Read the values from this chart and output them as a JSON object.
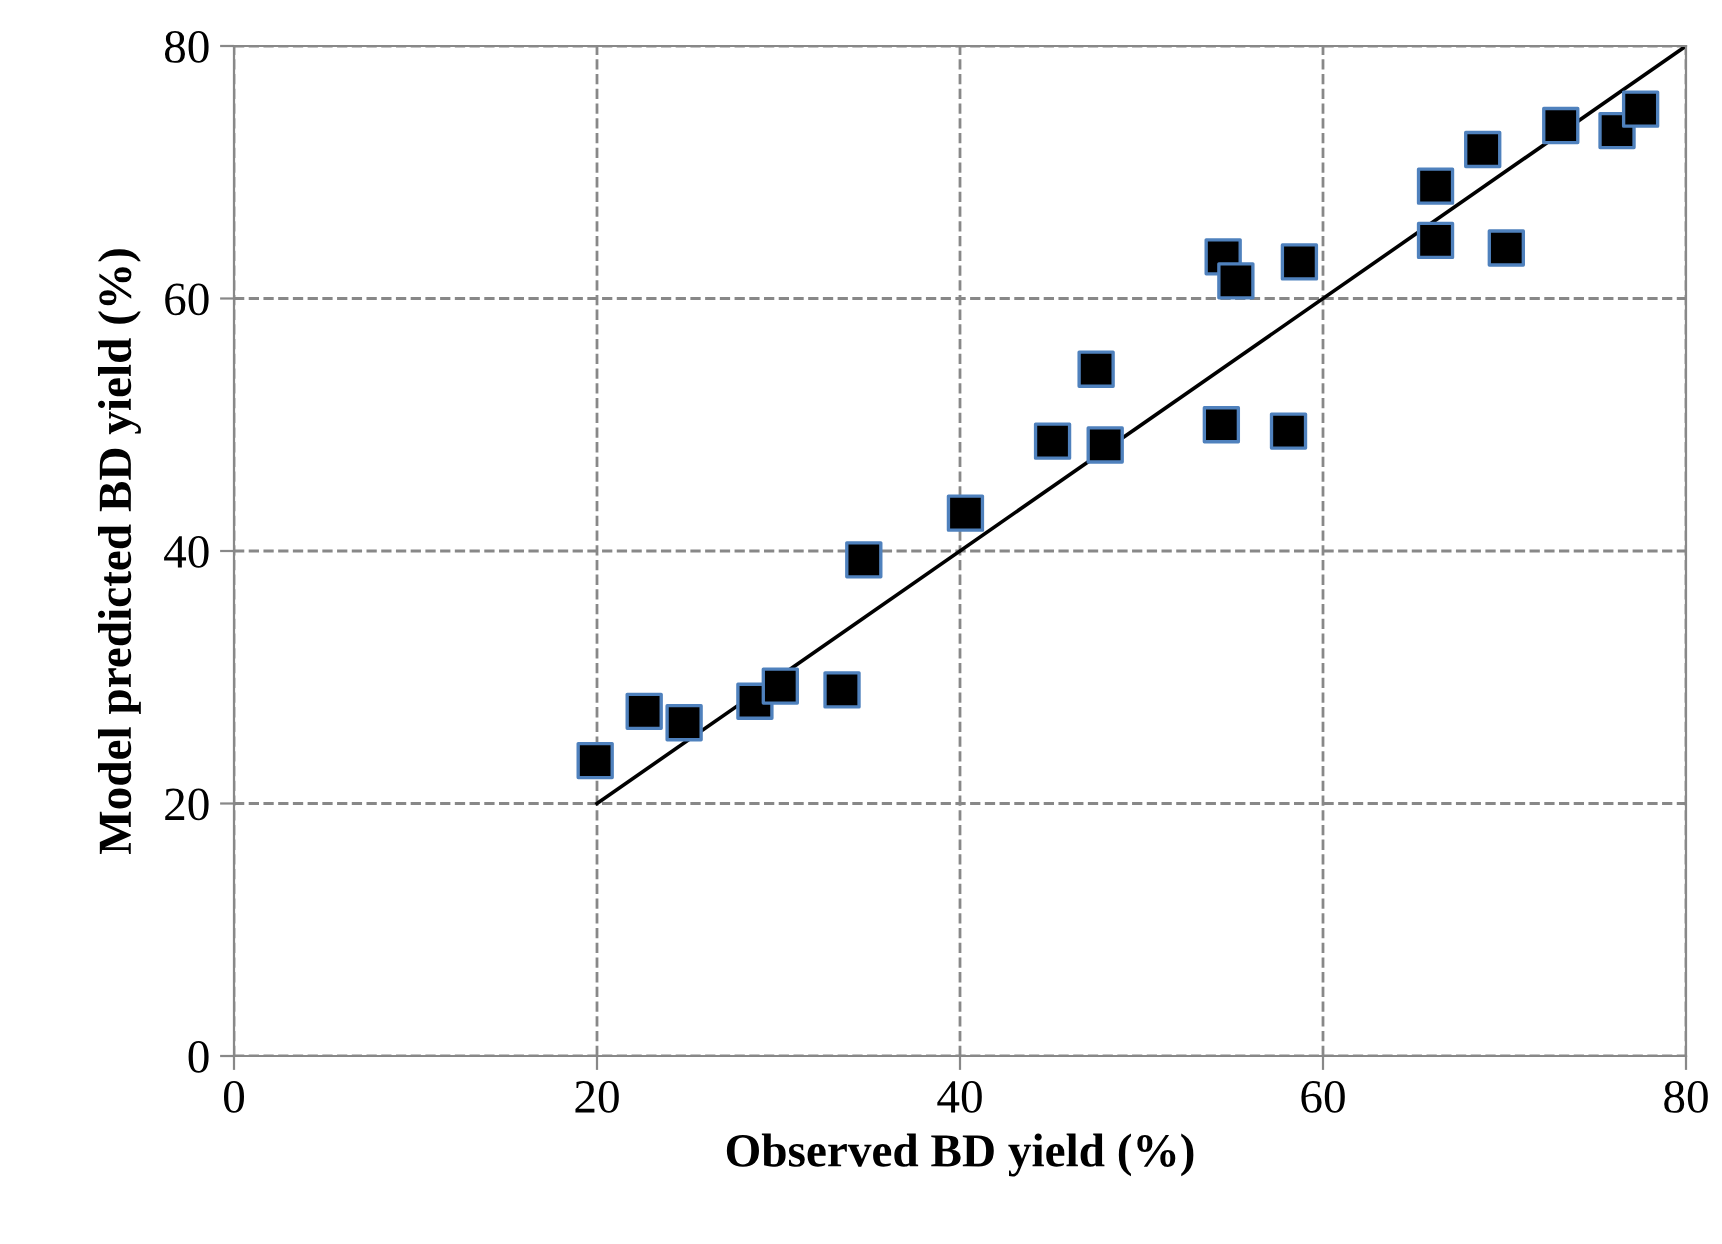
{
  "chart_data": {
    "type": "scatter",
    "xlabel": "Observed BD yield (%)",
    "ylabel": "Model predicted BD yield (%)",
    "xlim": [
      0,
      80
    ],
    "ylim": [
      0,
      80
    ],
    "xticks": [
      0,
      20,
      40,
      60,
      80
    ],
    "yticks": [
      0,
      20,
      40,
      60,
      80
    ],
    "grid": true,
    "legend": false,
    "series": [
      {
        "color": "#000000",
        "marker": "square",
        "x": [
          19.9,
          22.6,
          24.8,
          28.7,
          30.1,
          33.5,
          34.7,
          40.3,
          45.1,
          48.0,
          47.5,
          54.4,
          58.1,
          54.5,
          55.2,
          58.7,
          66.2,
          66.2,
          68.8,
          70.1,
          73.1,
          76.2,
          77.5
        ],
        "values": [
          23.4,
          27.3,
          26.4,
          28.1,
          29.3,
          29.0,
          39.3,
          43.0,
          48.7,
          48.4,
          54.4,
          50.0,
          49.5,
          63.3,
          61.4,
          62.9,
          68.9,
          64.6,
          71.8,
          64.0,
          73.7,
          73.3,
          75.0
        ]
      },
      {
        "type": "line",
        "color": "#000000",
        "marker": "none",
        "line_style": "solid",
        "x": [
          20,
          80
        ],
        "values": [
          20,
          80
        ]
      }
    ]
  }
}
